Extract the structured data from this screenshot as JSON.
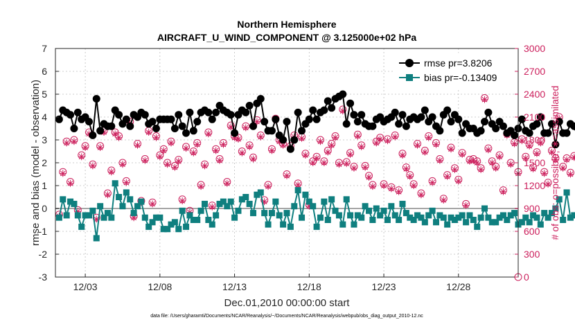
{
  "chart_data": {
    "type": "line",
    "title": "Northern Hemisphere",
    "subtitle": "AIRCRAFT_U_WIND_COMPONENT @ 3.125000e+02 hPa",
    "xlabel": "Dec.01,2010 00:00:00 start",
    "ylabel": "rmse and bias (model - observation)",
    "y2label": "# of obs: o=possible; ∗=assimilated",
    "footnote": "data file: /Users/gharamti/Documents/NCAR/Reanalysis/~/Documents/NCAR/Reanalysis/webpub/obs_diag_output_2010-12.nc",
    "x_ticks": [
      "12/03",
      "12/08",
      "12/13",
      "12/18",
      "12/23",
      "12/28"
    ],
    "x_tick_days": [
      3,
      8,
      13,
      18,
      23,
      28
    ],
    "xlim": [
      1.0,
      32.0
    ],
    "ylim": [
      -3,
      7
    ],
    "y_ticks": [
      "-3",
      "-2",
      "-1",
      "0",
      "1",
      "2",
      "3",
      "4",
      "5",
      "6",
      "7"
    ],
    "y2lim": [
      0,
      3000
    ],
    "y2_ticks": [
      "0",
      "300",
      "600",
      "900",
      "1200",
      "1500",
      "1800",
      "2100",
      "2400",
      "2700",
      "3000"
    ],
    "grid": true,
    "legend_position": "top-right",
    "series": [
      {
        "name": "rmse pr=3.8206",
        "axis": "left",
        "color": "#000000",
        "marker": "circle",
        "values": [
          3.9,
          4.3,
          4.2,
          4.1,
          3.5,
          4.2,
          3.9,
          4.0,
          3.8,
          3.2,
          4.8,
          3.4,
          3.7,
          3.6,
          3.6,
          4.3,
          4.1,
          3.7,
          3.9,
          3.6,
          4.1,
          4.0,
          4.2,
          4.1,
          3.7,
          3.8,
          3.5,
          3.9,
          3.9,
          3.9,
          3.9,
          3.5,
          4.1,
          3.6,
          3.3,
          4.2,
          3.4,
          3.8,
          4.2,
          4.3,
          4.2,
          3.9,
          4.2,
          4.5,
          4.3,
          4.2,
          4.1,
          3.3,
          4.1,
          4.3,
          4.2,
          4.5,
          3.6,
          4.6,
          4.8,
          3.8,
          3.4,
          3.4,
          3.9,
          3.2,
          3.0,
          3.8,
          2.6,
          3.0,
          4.2,
          3.4,
          3.7,
          3.9,
          4.3,
          3.9,
          4.2,
          4.3,
          4.7,
          4.4,
          4.8,
          4.9,
          5.0,
          3.7,
          4.6,
          4.1,
          3.8,
          4.1,
          3.7,
          3.6,
          3.6,
          3.9,
          4.0,
          3.8,
          3.9,
          4.0,
          4.2,
          3.7,
          4.1,
          3.6,
          3.9,
          4.0,
          3.9,
          4.0,
          4.3,
          3.8,
          4.0,
          3.6,
          3.4,
          4.1,
          4.3,
          3.8,
          4.1,
          3.9,
          3.3,
          3.7,
          3.5,
          3.5,
          3.3,
          3.4,
          3.8,
          4.2,
          3.7,
          3.5,
          3.8,
          3.6,
          3.3,
          3.4,
          3.2,
          3.5,
          3.9,
          3.4,
          3.3,
          3.6,
          3.7,
          4.0,
          3.3,
          3.3,
          3.7,
          2.8,
          3.8,
          3.3,
          3.3,
          3.7,
          3.6,
          3.5,
          3.3,
          3.6,
          3.4,
          3.4,
          3.6,
          3.3,
          3.7,
          3.8,
          3.5,
          3.3,
          3.6,
          3.4,
          3.9,
          3.6,
          3.9,
          3.5,
          3.7,
          3.4,
          3.7,
          3.5,
          2.5,
          3.5,
          3.6,
          3.7,
          3.9,
          3.8,
          3.6,
          3.8,
          3.3,
          3.6,
          3.1,
          3.6,
          3.4
        ]
      },
      {
        "name": "bias pr=-0.13409",
        "axis": "left",
        "color": "#0f7f7f",
        "marker": "square",
        "values": [
          -0.4,
          0.4,
          -0.3,
          0.3,
          0.2,
          -0.3,
          -0.8,
          -0.3,
          -0.3,
          -0.1,
          -1.3,
          0.1,
          -0.4,
          -0.2,
          -0.4,
          1.1,
          0.5,
          0.1,
          0.7,
          0.4,
          -0.2,
          0.1,
          0.3,
          -0.4,
          -0.8,
          -0.6,
          -0.4,
          -0.4,
          -0.9,
          -0.9,
          -0.7,
          -0.6,
          -0.9,
          -0.1,
          -0.8,
          -0.3,
          -0.5,
          -0.5,
          -0.1,
          0.2,
          -0.5,
          -0.7,
          -0.3,
          0.2,
          0.3,
          0.1,
          0.3,
          -0.4,
          -0.1,
          0.4,
          0.5,
          0.2,
          -0.2,
          0.6,
          0.7,
          -0.2,
          -0.7,
          -0.2,
          0.3,
          -0.3,
          -0.7,
          -0.2,
          -0.8,
          0.1,
          0.8,
          -0.4,
          0.6,
          0.3,
          0.1,
          -0.8,
          -0.4,
          0.3,
          -0.5,
          0.4,
          -0.1,
          -0.3,
          -0.7,
          0.4,
          -0.3,
          -0.7,
          -0.3,
          -0.4,
          0.1,
          -0.1,
          -0.5,
          0.0,
          -0.3,
          -0.1,
          -0.5,
          0.1,
          -0.3,
          -0.5,
          0.2,
          -0.2,
          -0.4,
          -0.5,
          -0.3,
          -0.4,
          -0.6,
          -0.3,
          -0.1,
          -0.6,
          -0.3,
          -0.4,
          -0.7,
          -0.4,
          -0.5,
          -0.4,
          -0.3,
          -0.6,
          -0.3,
          -0.5,
          -0.8,
          -0.4,
          0.0,
          -0.4,
          -0.6,
          -0.6,
          -0.4,
          -0.3,
          -0.5,
          -0.3,
          -0.2,
          -0.7,
          -0.6,
          -0.4,
          -0.6,
          -0.3,
          -0.4,
          -0.7,
          -0.2,
          -0.4,
          -0.2,
          0.0,
          0.4,
          -0.5,
          0.7,
          -0.4,
          -0.3,
          -0.3,
          -0.1,
          -0.5,
          0.5,
          1.3,
          -0.4,
          0.3,
          0.2,
          -0.3,
          -0.2,
          -0.5,
          -0.3,
          -0.2,
          -0.1,
          0.2,
          -0.2,
          -0.4,
          -0.3,
          -0.7,
          -0.4,
          0.3,
          0.0,
          -0.6,
          0.0,
          -0.3,
          -0.1,
          0.1,
          0.2,
          -0.3,
          -0.2,
          -0.4,
          -0.4,
          -0.6,
          -0.5,
          -0.4,
          -0.3,
          -0.4,
          -0.5
        ]
      },
      {
        "name": "possible",
        "axis": "right",
        "color": "#cc1f5c",
        "marker": "open-circle",
        "values": [
          820,
          1380,
          1780,
          1250,
          1800,
          880,
          1600,
          1720,
          1900,
          1480,
          780,
          1720,
          1920,
          1100,
          1400,
          1900,
          1850,
          1500,
          1260,
          2040,
          800,
          1750,
          1000,
          1550,
          1920,
          980,
          1850,
          1600,
          1680,
          1500,
          1780,
          1460,
          1540,
          1020,
          1710,
          870,
          1650,
          1760,
          1210,
          1480,
          1900,
          940,
          1680,
          1550,
          1760,
          1250,
          1990,
          1850,
          1830,
          1650,
          1980,
          1730,
          1570,
          2060,
          1860,
          1010,
          1210,
          1680,
          2080,
          1800,
          1750,
          1350,
          1720,
          1860,
          1230,
          1840,
          1620,
          950,
          1520,
          1580,
          1800,
          1520,
          1660,
          1750,
          1850,
          1500,
          2200,
          1510,
          1630,
          1450,
          1870,
          1730,
          1460,
          1330,
          1210,
          1780,
          1830,
          1220,
          1810,
          1180,
          1860,
          1140,
          1620,
          1440,
          1340,
          1220,
          1750,
          1100,
          1660,
          1850,
          1260,
          1760,
          1550,
          1030,
          1340,
          1700,
          1430,
          1280,
          1630,
          960,
          1540,
          1550,
          1520,
          1430,
          2350,
          1690,
          1520,
          1450,
          1600,
          1140,
          1880,
          1500,
          1770,
          1380,
          1810,
          1580,
          1740,
          1440,
          1640,
          1780,
          1380,
          1240,
          1660,
          1560,
          2100,
          1450,
          1560,
          1370,
          1590,
          1570,
          1080,
          1500,
          1210,
          1760,
          1430,
          1600,
          1830,
          1720,
          1190,
          1540,
          1310,
          2130,
          1620,
          1730,
          1400,
          1570,
          1550,
          1430,
          1710,
          1430,
          930,
          1690,
          1880,
          1450,
          1620,
          1540,
          1300,
          1490,
          1710,
          2050,
          1850,
          1890,
          1860,
          2200,
          1620,
          1370,
          1530,
          1570
        ]
      },
      {
        "name": "assimilated",
        "axis": "right",
        "color": "#cc1f5c",
        "marker": "asterisk",
        "values": [
          800,
          1360,
          1760,
          1230,
          1780,
          860,
          1580,
          1700,
          1880,
          1460,
          760,
          1700,
          1900,
          1080,
          1380,
          1880,
          1830,
          1480,
          1240,
          2020,
          780,
          1730,
          980,
          1530,
          1900,
          960,
          1830,
          1580,
          1660,
          1480,
          1760,
          1440,
          1520,
          1000,
          1690,
          850,
          1630,
          1740,
          1190,
          1460,
          1880,
          920,
          1660,
          1530,
          1740,
          1230,
          1970,
          1830,
          1810,
          1630,
          1960,
          1710,
          1550,
          2040,
          1840,
          990,
          1190,
          1660,
          2060,
          1780,
          1730,
          1330,
          1700,
          1840,
          1210,
          1820,
          1600,
          930,
          1500,
          1560,
          1780,
          1500,
          1640,
          1730,
          1830,
          1480,
          2180,
          1490,
          1610,
          1430,
          1850,
          1710,
          1440,
          1310,
          1190,
          1760,
          1810,
          1200,
          1790,
          1160,
          1840,
          1120,
          1600,
          1420,
          1320,
          1200,
          1730,
          1080,
          1640,
          1830,
          1240,
          1740,
          1530,
          1010,
          1320,
          1680,
          1410,
          1260,
          1610,
          940,
          1520,
          1530,
          1500,
          1410,
          2330,
          1670,
          1500,
          1430,
          1580,
          1120,
          1860,
          1480,
          1750,
          1360,
          1790,
          1560,
          1720,
          1420,
          1620,
          1760,
          1360,
          1220,
          1640,
          1540,
          2080,
          1430,
          1540,
          1350,
          1570,
          1550,
          1060,
          1480,
          1190,
          1740,
          1410,
          1580,
          1810,
          1700,
          1170,
          1520,
          1290,
          2110,
          1600,
          1710,
          1380,
          1550,
          1530,
          1410,
          1690,
          1410,
          910,
          1670,
          1860,
          1430,
          1600,
          1520,
          1280,
          1470,
          1690,
          2030,
          1830,
          1870,
          1840,
          2180,
          1600,
          1350,
          1510,
          1550
        ]
      }
    ]
  }
}
